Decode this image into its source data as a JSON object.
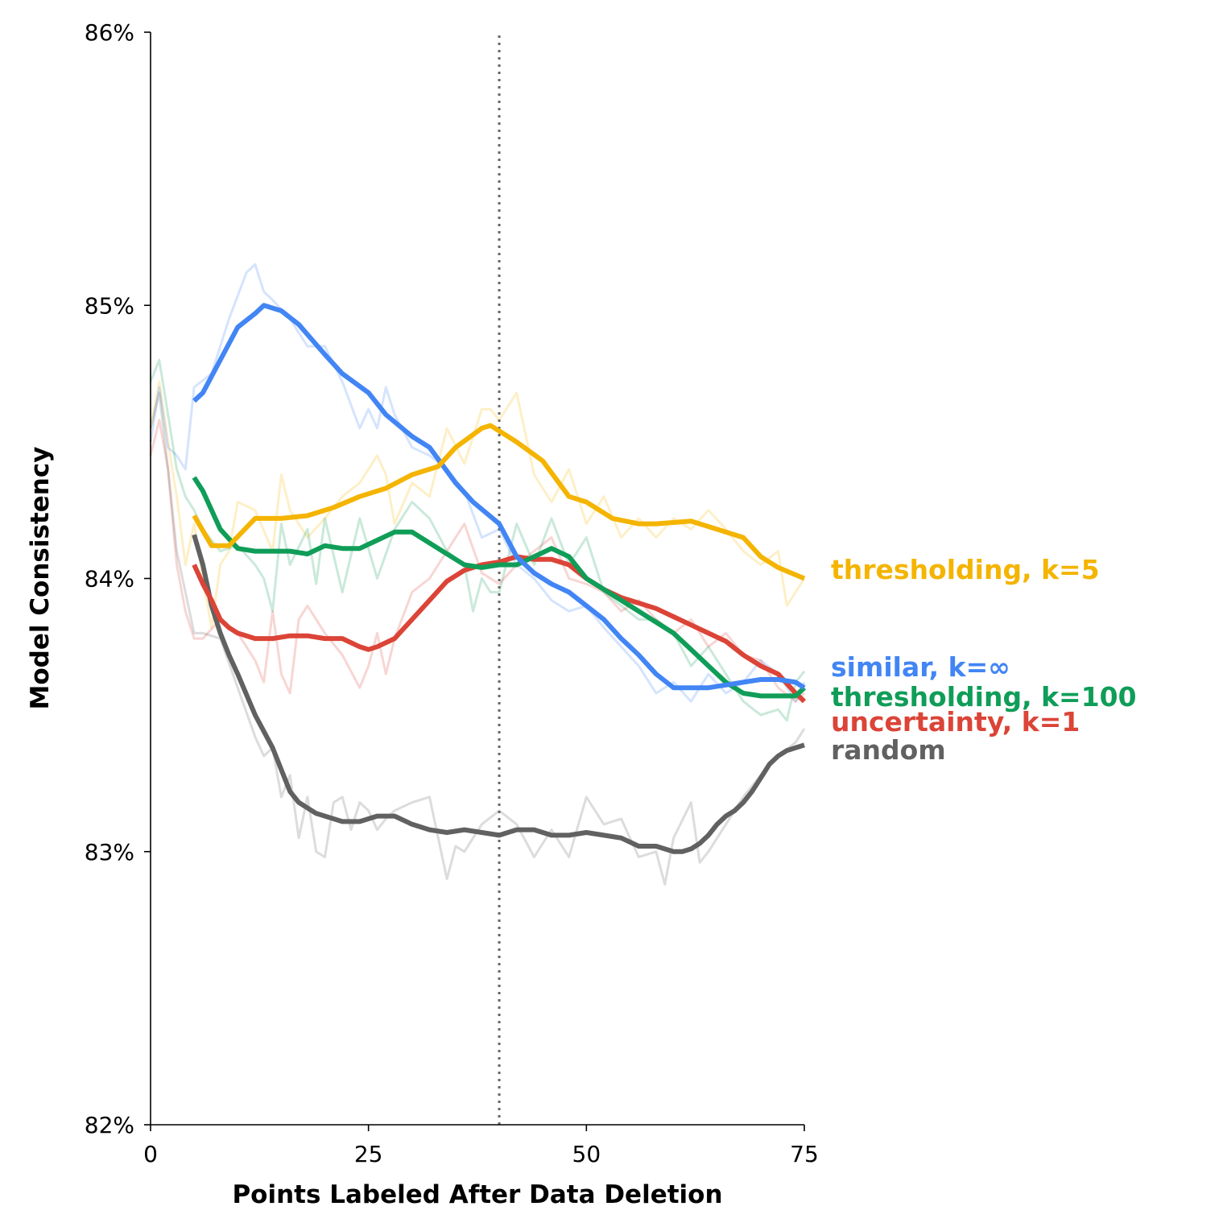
{
  "chart_data": {
    "type": "line",
    "title": "",
    "xlabel": "Points Labeled After Data Deletion",
    "ylabel": "Model Consistency",
    "xlim": [
      0,
      75
    ],
    "ylim": [
      82,
      86
    ],
    "x_ticks": [
      0,
      25,
      50,
      75
    ],
    "x_tick_labels": [
      "0",
      "25",
      "50",
      "75"
    ],
    "y_ticks": [
      82,
      83,
      84,
      85,
      86
    ],
    "y_tick_labels": [
      "82%",
      "83%",
      "84%",
      "85%",
      "86%"
    ],
    "reference_line_x": 40,
    "grid": false,
    "legend": "direct labels at right end of lines",
    "series": [
      {
        "name": "thresholding, k=5",
        "color": "#F4B400",
        "smoothed": {
          "x": [
            5,
            7,
            9,
            12,
            15,
            18,
            21,
            24,
            27,
            30,
            33,
            35,
            38,
            39,
            42,
            45,
            48,
            50,
            53,
            56,
            58,
            62,
            65,
            68,
            70,
            72,
            75
          ],
          "y": [
            84.23,
            84.12,
            84.12,
            84.22,
            84.22,
            84.23,
            84.26,
            84.3,
            84.33,
            84.38,
            84.41,
            84.48,
            84.55,
            84.56,
            84.5,
            84.43,
            84.3,
            84.28,
            84.22,
            84.2,
            84.2,
            84.21,
            84.18,
            84.15,
            84.08,
            84.04,
            84.0
          ]
        },
        "raw": {
          "x": [
            0,
            1,
            2,
            3,
            4,
            5,
            6,
            7,
            8,
            9,
            10,
            12,
            14,
            15,
            16,
            18,
            20,
            22,
            24,
            26,
            27,
            28,
            30,
            32,
            34,
            36,
            38,
            39,
            40,
            42,
            44,
            46,
            48,
            50,
            52,
            54,
            56,
            58,
            60,
            62,
            64,
            66,
            68,
            70,
            72,
            73,
            75
          ],
          "y": [
            84.55,
            84.72,
            84.5,
            84.3,
            84.05,
            84.2,
            84.0,
            83.82,
            84.05,
            84.1,
            84.28,
            84.25,
            84.1,
            84.38,
            84.25,
            84.15,
            84.22,
            84.3,
            84.35,
            84.45,
            84.38,
            84.2,
            84.35,
            84.3,
            84.55,
            84.42,
            84.62,
            84.62,
            84.58,
            84.68,
            84.38,
            84.28,
            84.4,
            84.2,
            84.3,
            84.15,
            84.22,
            84.15,
            84.22,
            84.18,
            84.25,
            84.18,
            84.1,
            84.05,
            84.1,
            83.9,
            84.0
          ]
        }
      },
      {
        "name": "similar, k=∞",
        "color": "#4285F4",
        "smoothed": {
          "x": [
            5,
            6,
            8,
            10,
            12,
            13,
            15,
            17,
            20,
            22,
            25,
            27,
            30,
            32,
            35,
            37,
            40,
            42,
            44,
            46,
            48,
            50,
            52,
            54,
            56,
            58,
            60,
            62,
            64,
            66,
            68,
            70,
            72,
            74,
            75
          ],
          "y": [
            84.65,
            84.68,
            84.8,
            84.92,
            84.97,
            85.0,
            84.98,
            84.93,
            84.82,
            84.75,
            84.68,
            84.6,
            84.52,
            84.48,
            84.35,
            84.28,
            84.2,
            84.08,
            84.02,
            83.98,
            83.95,
            83.9,
            83.85,
            83.78,
            83.72,
            83.65,
            83.6,
            83.6,
            83.6,
            83.61,
            83.62,
            83.63,
            83.63,
            83.62,
            83.6
          ]
        },
        "raw": {
          "x": [
            0,
            1,
            2,
            3,
            4,
            5,
            7,
            9,
            11,
            12,
            13,
            14,
            16,
            18,
            20,
            22,
            24,
            25,
            26,
            27,
            28,
            30,
            32,
            34,
            36,
            38,
            40,
            42,
            44,
            46,
            48,
            50,
            52,
            54,
            56,
            58,
            60,
            62,
            64,
            66,
            68,
            70,
            72,
            74,
            75
          ],
          "y": [
            84.5,
            84.7,
            84.48,
            84.45,
            84.4,
            84.7,
            84.75,
            84.95,
            85.12,
            85.15,
            85.05,
            85.02,
            84.95,
            84.85,
            84.85,
            84.72,
            84.55,
            84.62,
            84.55,
            84.7,
            84.6,
            84.48,
            84.45,
            84.4,
            84.32,
            84.15,
            84.18,
            84.05,
            84.0,
            83.92,
            83.88,
            83.9,
            83.82,
            83.75,
            83.68,
            83.58,
            83.62,
            83.55,
            83.65,
            83.58,
            83.62,
            83.7,
            83.65,
            83.55,
            83.62
          ]
        }
      },
      {
        "name": "thresholding, k=100",
        "color": "#0F9D58",
        "smoothed": {
          "x": [
            5,
            6,
            8,
            10,
            12,
            14,
            16,
            18,
            20,
            22,
            24,
            26,
            28,
            30,
            32,
            34,
            36,
            38,
            40,
            42,
            44,
            46,
            48,
            50,
            52,
            54,
            56,
            58,
            60,
            62,
            64,
            66,
            68,
            70,
            72,
            74,
            75
          ],
          "y": [
            84.37,
            84.32,
            84.18,
            84.11,
            84.1,
            84.1,
            84.1,
            84.09,
            84.12,
            84.11,
            84.11,
            84.14,
            84.17,
            84.17,
            84.13,
            84.09,
            84.05,
            84.04,
            84.05,
            84.05,
            84.08,
            84.11,
            84.08,
            84.0,
            83.96,
            83.92,
            83.88,
            83.84,
            83.8,
            83.74,
            83.68,
            83.62,
            83.58,
            83.57,
            83.57,
            83.57,
            83.6
          ]
        },
        "raw": {
          "x": [
            0,
            1,
            2,
            3,
            4,
            5,
            6,
            8,
            10,
            12,
            13,
            14,
            15,
            16,
            18,
            19,
            20,
            22,
            24,
            26,
            28,
            30,
            32,
            34,
            36,
            37,
            38,
            39,
            40,
            42,
            44,
            46,
            48,
            50,
            52,
            54,
            56,
            58,
            60,
            62,
            64,
            66,
            68,
            70,
            72,
            73,
            74,
            75
          ],
          "y": [
            84.72,
            84.8,
            84.6,
            84.4,
            84.3,
            84.25,
            84.18,
            84.1,
            84.12,
            84.05,
            84.0,
            83.88,
            84.2,
            84.05,
            84.18,
            83.98,
            84.22,
            83.95,
            84.22,
            84.0,
            84.18,
            84.28,
            84.22,
            84.1,
            84.05,
            83.88,
            84.0,
            83.95,
            83.95,
            84.2,
            84.05,
            84.22,
            84.05,
            84.15,
            83.95,
            83.9,
            83.85,
            83.85,
            83.8,
            83.68,
            83.75,
            83.65,
            83.55,
            83.5,
            83.52,
            83.48,
            83.62,
            83.66
          ]
        }
      },
      {
        "name": "uncertainty, k=1",
        "color": "#DB4437",
        "smoothed": {
          "x": [
            5,
            6,
            7,
            8,
            9,
            10,
            12,
            14,
            16,
            18,
            20,
            22,
            24,
            25,
            26,
            28,
            30,
            32,
            34,
            36,
            38,
            40,
            42,
            44,
            46,
            48,
            50,
            52,
            54,
            56,
            58,
            60,
            62,
            64,
            66,
            68,
            70,
            72,
            74,
            75
          ],
          "y": [
            84.05,
            83.98,
            83.92,
            83.85,
            83.82,
            83.8,
            83.78,
            83.78,
            83.79,
            83.79,
            83.78,
            83.78,
            83.75,
            83.74,
            83.75,
            83.78,
            83.85,
            83.92,
            83.99,
            84.03,
            84.05,
            84.06,
            84.08,
            84.07,
            84.07,
            84.05,
            84.0,
            83.96,
            83.93,
            83.91,
            83.89,
            83.86,
            83.83,
            83.8,
            83.77,
            83.72,
            83.68,
            83.65,
            83.58,
            83.55
          ]
        },
        "raw": {
          "x": [
            0,
            1,
            2,
            3,
            4,
            5,
            6,
            8,
            10,
            12,
            13,
            14,
            15,
            16,
            17,
            18,
            20,
            22,
            24,
            25,
            26,
            27,
            28,
            30,
            32,
            34,
            36,
            38,
            40,
            42,
            44,
            46,
            48,
            50,
            52,
            54,
            56,
            58,
            60,
            62,
            64,
            66,
            68,
            70,
            72,
            74,
            75
          ],
          "y": [
            84.45,
            84.58,
            84.4,
            84.05,
            83.88,
            83.78,
            83.78,
            83.85,
            83.8,
            83.7,
            83.62,
            83.88,
            83.65,
            83.58,
            83.85,
            83.9,
            83.8,
            83.72,
            83.6,
            83.68,
            83.8,
            83.65,
            83.78,
            83.95,
            84.0,
            84.1,
            84.2,
            84.02,
            83.98,
            84.05,
            84.1,
            84.15,
            84.0,
            83.98,
            83.95,
            83.88,
            83.92,
            83.85,
            83.8,
            83.85,
            83.75,
            83.8,
            83.72,
            83.7,
            83.6,
            83.55,
            83.58
          ]
        }
      },
      {
        "name": "random",
        "color": "#616161",
        "smoothed": {
          "x": [
            5,
            6,
            7,
            8,
            9,
            10,
            12,
            14,
            15,
            16,
            17,
            18,
            19,
            20,
            22,
            24,
            26,
            28,
            30,
            32,
            34,
            36,
            38,
            40,
            42,
            44,
            46,
            48,
            50,
            52,
            54,
            56,
            58,
            60,
            61,
            62,
            63,
            64,
            65,
            66,
            67,
            68,
            69,
            70,
            71,
            72,
            73,
            74,
            75
          ],
          "y": [
            84.16,
            84.05,
            83.9,
            83.8,
            83.72,
            83.65,
            83.5,
            83.38,
            83.3,
            83.22,
            83.18,
            83.16,
            83.14,
            83.13,
            83.11,
            83.11,
            83.13,
            83.13,
            83.1,
            83.08,
            83.07,
            83.08,
            83.07,
            83.06,
            83.08,
            83.08,
            83.06,
            83.06,
            83.07,
            83.06,
            83.05,
            83.02,
            83.02,
            83.0,
            83.0,
            83.01,
            83.03,
            83.06,
            83.1,
            83.13,
            83.15,
            83.18,
            83.22,
            83.27,
            83.32,
            83.35,
            83.37,
            83.38,
            83.39
          ]
        },
        "raw": {
          "x": [
            0,
            1,
            2,
            3,
            4,
            5,
            6,
            8,
            10,
            12,
            13,
            14,
            15,
            16,
            17,
            18,
            19,
            20,
            21,
            22,
            23,
            24,
            25,
            26,
            27,
            28,
            30,
            32,
            34,
            35,
            36,
            38,
            40,
            42,
            44,
            46,
            48,
            50,
            52,
            54,
            56,
            58,
            59,
            60,
            62,
            63,
            64,
            66,
            68,
            70,
            72,
            74,
            75
          ],
          "y": [
            84.55,
            84.68,
            84.4,
            84.1,
            83.95,
            83.8,
            83.8,
            83.78,
            83.6,
            83.42,
            83.35,
            83.38,
            83.2,
            83.28,
            83.05,
            83.2,
            83.0,
            82.98,
            83.18,
            83.2,
            83.08,
            83.18,
            83.15,
            83.08,
            83.12,
            83.15,
            83.18,
            83.2,
            82.9,
            83.02,
            83.0,
            83.1,
            83.15,
            83.1,
            82.98,
            83.08,
            82.98,
            83.2,
            83.1,
            83.12,
            82.98,
            83.0,
            82.88,
            83.05,
            83.18,
            82.96,
            83.0,
            83.1,
            83.2,
            83.28,
            83.35,
            83.4,
            83.45
          ]
        }
      }
    ]
  }
}
